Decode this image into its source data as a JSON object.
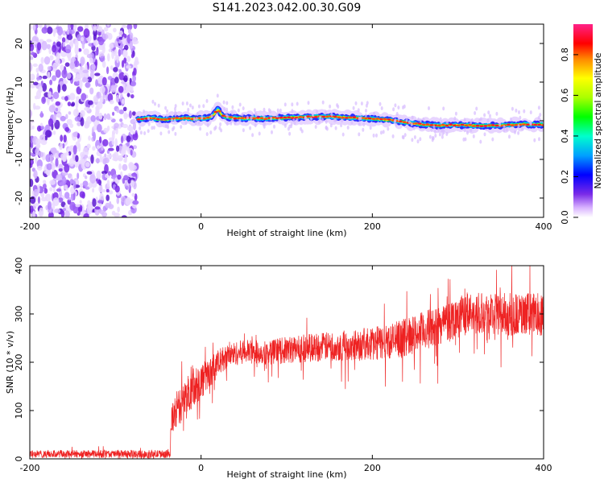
{
  "title": "S141.2023.042.00.30.G09",
  "colors": {
    "snr_line": "#ee2222",
    "noise": "#7a2be8",
    "background": "#ffffff"
  },
  "chart_data": [
    {
      "type": "heatmap",
      "xlabel": "Height of straight line (km)",
      "ylabel": "Frequency (Hz)",
      "xlim": [
        -200,
        400
      ],
      "ylim": [
        -25,
        25
      ],
      "x_ticks": [
        -200,
        0,
        200,
        400
      ],
      "y_ticks": [
        -20,
        -10,
        0,
        10,
        20
      ],
      "x_tick_labels": [
        "-200",
        "0",
        "200",
        "400"
      ],
      "y_tick_labels": [
        "-20",
        "-10",
        "0",
        "10",
        "20"
      ],
      "colorbar": {
        "label": "Normalized spectral amplitude",
        "range": [
          0,
          0.95
        ],
        "ticks": [
          0.0,
          0.2,
          0.4,
          0.6,
          0.8
        ],
        "tick_labels": [
          "0.0",
          "0.2",
          "0.4",
          "0.6",
          "0.8"
        ]
      },
      "noise_region_x": [
        -200,
        -75
      ],
      "ridge": {
        "x": [
          -75,
          -60,
          -50,
          -40,
          -30,
          -20,
          -10,
          0,
          10,
          15,
          20,
          25,
          35,
          50,
          60,
          75,
          100,
          125,
          150,
          175,
          200,
          225,
          250,
          275,
          300,
          325,
          350,
          375,
          400
        ],
        "freq_hz": [
          0.3,
          0.8,
          0.4,
          0.3,
          0.6,
          0.7,
          0.5,
          0.6,
          0.8,
          1.6,
          3.0,
          1.2,
          0.8,
          0.6,
          0.7,
          0.6,
          0.8,
          1.0,
          1.1,
          0.8,
          0.5,
          0.1,
          -0.8,
          -1.2,
          -1.1,
          -1.3,
          -1.2,
          -0.9,
          -1.0
        ]
      }
    },
    {
      "type": "line",
      "xlabel": "Height of straight line (km)",
      "ylabel": "SNR (10 * v/v)",
      "xlim": [
        -200,
        400
      ],
      "ylim": [
        0,
        400
      ],
      "x_ticks": [
        -200,
        0,
        200,
        400
      ],
      "y_ticks": [
        0,
        100,
        200,
        300,
        400
      ],
      "x_tick_labels": [
        "-200",
        "0",
        "200",
        "400"
      ],
      "y_tick_labels": [
        "0",
        "100",
        "200",
        "300",
        "400"
      ],
      "series": [
        {
          "x": [
            -200,
            -150,
            -100,
            -50,
            -36,
            -35,
            -30,
            -20,
            -10,
            0,
            10,
            20,
            30,
            40,
            50,
            75,
            100,
            125,
            150,
            175,
            200,
            225,
            250,
            275,
            300,
            325,
            350,
            375,
            400
          ],
          "y": [
            10,
            10,
            10,
            10,
            10,
            75,
            95,
            120,
            150,
            160,
            178,
            198,
            212,
            218,
            222,
            220,
            225,
            230,
            233,
            235,
            238,
            245,
            258,
            275,
            295,
            305,
            300,
            298,
            300
          ],
          "spread": [
            8,
            8,
            8,
            8,
            8,
            30,
            35,
            40,
            40,
            40,
            30,
            28,
            25,
            25,
            25,
            25,
            28,
            30,
            30,
            32,
            35,
            38,
            40,
            42,
            45,
            45,
            45,
            45,
            45
          ]
        }
      ]
    }
  ]
}
